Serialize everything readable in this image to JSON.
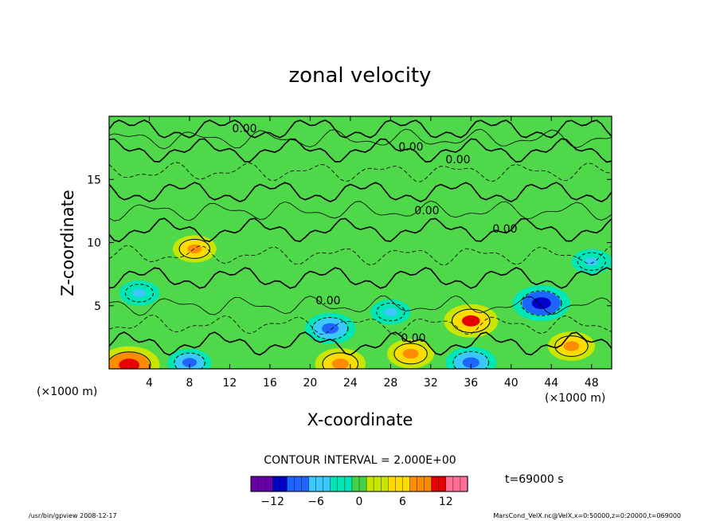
{
  "chart_data": {
    "type": "contour",
    "title": "zonal velocity",
    "xlabel": "X-coordinate",
    "ylabel": "Z-coordinate",
    "x_unit": "(×1000 m)",
    "y_unit": "(×1000 m)",
    "xlim": [
      0,
      50
    ],
    "ylim": [
      0,
      20
    ],
    "x_ticks": [
      4,
      8,
      12,
      16,
      20,
      24,
      28,
      32,
      36,
      40,
      44,
      48
    ],
    "y_ticks": [
      5,
      10,
      15
    ],
    "contour_interval_text": "CONTOUR INTERVAL = 2.000E+00",
    "contour_labels": [
      "0.00",
      "0.00",
      "0.00",
      "0.00",
      "0.00",
      "0.00",
      "0.00"
    ],
    "colorbar": {
      "min": -15,
      "max": 15,
      "ticks": [
        -12,
        -6,
        0,
        6,
        12
      ],
      "tick_labels": [
        "−12",
        "−6",
        "0",
        "6",
        "12"
      ],
      "colors": [
        "#6a00a8",
        "#0000c8",
        "#1e64ff",
        "#3cc8ff",
        "#00e6b4",
        "#46d246",
        "#c8e600",
        "#ffdc00",
        "#ff8c00",
        "#e60000",
        "#ff6e96"
      ]
    },
    "time_label": "t=69000 s",
    "features": [
      {
        "x": 8.5,
        "z": 9.5,
        "value": 7,
        "label": "positive"
      },
      {
        "x": 3,
        "z": 6,
        "value": -6,
        "label": "negative"
      },
      {
        "x": 22,
        "z": 3.2,
        "value": -9,
        "label": "negative"
      },
      {
        "x": 28,
        "z": 4.5,
        "value": -6,
        "label": "negative"
      },
      {
        "x": 36,
        "z": 3.8,
        "value": 10,
        "label": "positive"
      },
      {
        "x": 43,
        "z": 5.2,
        "value": -11,
        "label": "negative"
      },
      {
        "x": 48,
        "z": 8.5,
        "value": -6,
        "label": "negative"
      },
      {
        "x": 36,
        "z": 0.5,
        "value": -9,
        "label": "negative"
      },
      {
        "x": 23,
        "z": 0.4,
        "value": 9,
        "label": "positive"
      },
      {
        "x": 2,
        "z": 0.3,
        "value": 12,
        "label": "positive"
      },
      {
        "x": 8,
        "z": 0.5,
        "value": -7,
        "label": "negative"
      },
      {
        "x": 30,
        "z": 1.2,
        "value": 8,
        "label": "positive"
      },
      {
        "x": 46,
        "z": 1.8,
        "value": 8,
        "label": "positive"
      }
    ]
  },
  "footer": {
    "left": "/usr/bin/gpview   2008-12-17",
    "right": "MarsCond_VelX.nc@VelX,x=0:50000,z=0:20000,t=069000"
  }
}
